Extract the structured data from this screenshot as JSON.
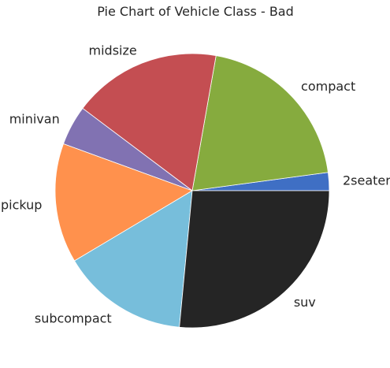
{
  "chart_data": {
    "type": "pie",
    "title": "Pie Chart of Vehicle Class - Bad",
    "start_angle_deg": 0,
    "direction": "counterclockwise",
    "legend": "none",
    "grid": false,
    "slices": [
      {
        "label": "2seater",
        "value": 5,
        "color": "#3f6fc4"
      },
      {
        "label": "compact",
        "value": 47,
        "color": "#86ab3e"
      },
      {
        "label": "midsize",
        "value": 41,
        "color": "#c44e52"
      },
      {
        "label": "minivan",
        "value": 11,
        "color": "#8172b2"
      },
      {
        "label": "pickup",
        "value": 33,
        "color": "#ff914d"
      },
      {
        "label": "subcompact",
        "value": 35,
        "color": "#77bedb"
      },
      {
        "label": "suv",
        "value": 62,
        "color": "#252525"
      }
    ]
  }
}
